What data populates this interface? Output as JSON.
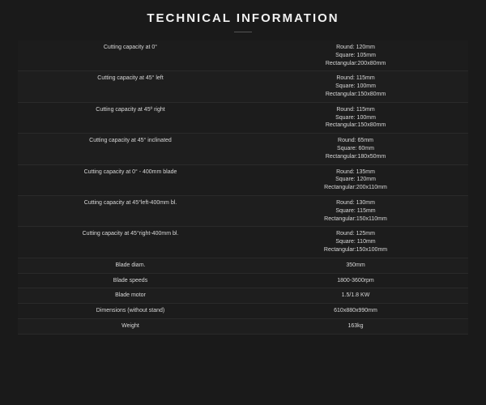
{
  "title": "TECHNICAL INFORMATION",
  "colors": {
    "background": "#1a1a1a",
    "row_bg": "#1e1e1e",
    "row_alt_bg": "#1c1c1c",
    "border": "#2a2a2a",
    "text": "#d8d8d8",
    "title_text": "#f2f2f2",
    "divider": "#555555"
  },
  "typography": {
    "title_fontsize": 15,
    "title_letter_spacing": 2,
    "cell_fontsize": 7
  },
  "rows": [
    {
      "label": "Cutting capacity at 0°",
      "values": [
        "Round: 120mm",
        "Square: 105mm",
        "Rectangular:200x80mm"
      ]
    },
    {
      "label": "Cutting capacity at 45° left",
      "values": [
        "Round: 115mm",
        "Square: 100mm",
        "Rectangular:150x80mm"
      ]
    },
    {
      "label": "Cutting capacity at 45º right",
      "values": [
        "Round: 115mm",
        "Square: 100mm",
        "Rectangular:150x80mm"
      ]
    },
    {
      "label": "Cutting capacity at 45° inclinated",
      "values": [
        "Round: 65mm",
        "Square: 60mm",
        "Rectangular:180x50mm"
      ]
    },
    {
      "label": "Cutting capacity at 0° - 400mm blade",
      "values": [
        "Round: 135mm",
        "Square: 120mm",
        "Rectangular:200x110mm"
      ]
    },
    {
      "label": "Cutting capacity at 45°left-400mm bl.",
      "values": [
        "Round: 130mm",
        "Square: 115mm",
        "Rectangular:150x110mm"
      ]
    },
    {
      "label": "Cutting capacity at 45°right-400mm bl.",
      "values": [
        "Round: 125mm",
        "Square: 110mm",
        "Rectangular:150x100mm"
      ]
    },
    {
      "label": "Blade diam.",
      "values": [
        "350mm"
      ]
    },
    {
      "label": "Blade speeds",
      "values": [
        "1800-3600rpm"
      ]
    },
    {
      "label": "Blade motor",
      "values": [
        "1.5/1.8 KW"
      ]
    },
    {
      "label": "Dimensions (without stand)",
      "values": [
        "610x880x990mm"
      ]
    },
    {
      "label": "Weight",
      "values": [
        "163kg"
      ]
    }
  ]
}
